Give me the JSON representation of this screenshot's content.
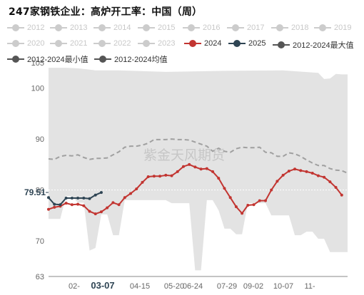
{
  "title": "247家钢铁企业：高炉开工率：中国（周）",
  "watermark": "紫金天风期货",
  "legend": [
    {
      "label": "2012",
      "color": "#cccccc",
      "active": false
    },
    {
      "label": "2013",
      "color": "#cccccc",
      "active": false
    },
    {
      "label": "2014",
      "color": "#cccccc",
      "active": false
    },
    {
      "label": "2015",
      "color": "#cccccc",
      "active": false
    },
    {
      "label": "2016",
      "color": "#cccccc",
      "active": false
    },
    {
      "label": "2017",
      "color": "#cccccc",
      "active": false
    },
    {
      "label": "2018",
      "color": "#cccccc",
      "active": false
    },
    {
      "label": "2019",
      "color": "#cccccc",
      "active": false
    },
    {
      "label": "2020",
      "color": "#cccccc",
      "active": false
    },
    {
      "label": "2021",
      "color": "#cccccc",
      "active": false
    },
    {
      "label": "2022",
      "color": "#cccccc",
      "active": false
    },
    {
      "label": "2023",
      "color": "#cccccc",
      "active": false
    },
    {
      "label": "2024",
      "color": "#c23531",
      "active": true
    },
    {
      "label": "2025",
      "color": "#2f4554",
      "active": true
    },
    {
      "label": "2012-2024最大值",
      "color": "#555555",
      "active": true
    },
    {
      "label": "2012-2024最小值",
      "color": "#555555",
      "active": true
    },
    {
      "label": "2012-2024均值",
      "color": "#555555",
      "active": true
    }
  ],
  "chart_data": {
    "type": "line",
    "ylim": [
      63,
      105
    ],
    "yticks": [
      63,
      70,
      80,
      90,
      100,
      105
    ],
    "x_ticks": [
      "02-",
      "03-07",
      "04-15",
      "05-20",
      "06-24",
      "07-29",
      "09-02",
      "10-07",
      "11-"
    ],
    "highlight_x_tick": "03-07",
    "highlight_y_value": "79.51",
    "series": [
      {
        "name": "2024",
        "color": "#c23531",
        "points": [
          [
            0,
            76.2
          ],
          [
            1,
            76.6
          ],
          [
            2,
            76.8
          ],
          [
            3,
            77.4
          ],
          [
            4,
            77.1
          ],
          [
            5,
            77.2
          ],
          [
            6,
            76.9
          ],
          [
            7,
            75.8
          ],
          [
            8,
            75.3
          ],
          [
            9,
            75.7
          ],
          [
            10,
            76.5
          ],
          [
            11,
            77.5
          ],
          [
            12,
            77.1
          ],
          [
            13,
            78.5
          ],
          [
            14,
            79.3
          ],
          [
            15,
            80.2
          ],
          [
            16,
            81.5
          ],
          [
            17,
            82.6
          ],
          [
            18,
            82.7
          ],
          [
            19,
            82.7
          ],
          [
            20,
            82.9
          ],
          [
            21,
            82.8
          ],
          [
            22,
            83.6
          ],
          [
            23,
            84.6
          ],
          [
            24,
            85.0
          ],
          [
            25,
            84.5
          ],
          [
            26,
            84.1
          ],
          [
            27,
            84.2
          ],
          [
            28,
            83.6
          ],
          [
            29,
            82.3
          ],
          [
            30,
            80.3
          ],
          [
            31,
            78.5
          ],
          [
            32,
            76.7
          ],
          [
            33,
            75.4
          ],
          [
            34,
            77.0
          ],
          [
            35,
            77.1
          ],
          [
            36,
            77.9
          ],
          [
            37,
            77.9
          ],
          [
            38,
            80.0
          ],
          [
            39,
            81.7
          ],
          [
            40,
            82.9
          ],
          [
            41,
            83.7
          ],
          [
            42,
            84.1
          ],
          [
            43,
            83.8
          ],
          [
            44,
            83.6
          ],
          [
            45,
            83.3
          ],
          [
            46,
            82.8
          ],
          [
            47,
            82.5
          ],
          [
            48,
            81.6
          ],
          [
            49,
            80.5
          ],
          [
            50,
            79.0
          ]
        ]
      },
      {
        "name": "2025",
        "color": "#2f4554",
        "points": [
          [
            0,
            78.5
          ],
          [
            1,
            77.2
          ],
          [
            2,
            77.1
          ],
          [
            3,
            78.4
          ],
          [
            4,
            78.4
          ],
          [
            5,
            78.4
          ],
          [
            6,
            78.4
          ],
          [
            7,
            78.3
          ],
          [
            8,
            79.0
          ],
          [
            9,
            79.51
          ]
        ]
      },
      {
        "name": "2012-2024最大值",
        "color": "#e6e6e6",
        "points": [
          [
            0,
            104.0
          ],
          [
            3,
            104.0
          ],
          [
            5,
            103.9
          ],
          [
            8,
            103.5
          ],
          [
            12,
            103.5
          ],
          [
            20,
            103.2
          ],
          [
            30,
            103.4
          ],
          [
            40,
            103.5
          ],
          [
            46,
            103.0
          ],
          [
            47,
            101.8
          ],
          [
            48,
            101.9
          ],
          [
            49,
            102.8
          ],
          [
            50,
            102.7
          ],
          [
            51,
            102.7
          ]
        ]
      },
      {
        "name": "2012-2024最小值",
        "color": "#ffffff",
        "points": [
          [
            0,
            74.3
          ],
          [
            2,
            74.3
          ],
          [
            3,
            78.8
          ],
          [
            4,
            78.8
          ],
          [
            5,
            77.5
          ],
          [
            6,
            77.5
          ],
          [
            7,
            68.1
          ],
          [
            8,
            68.6
          ],
          [
            9,
            75.2
          ],
          [
            10,
            75.2
          ],
          [
            11,
            71.1
          ],
          [
            12,
            71.1
          ],
          [
            13,
            78.0
          ],
          [
            20,
            78.0
          ],
          [
            21,
            77.4
          ],
          [
            24,
            77.4
          ],
          [
            25,
            64.2
          ],
          [
            26,
            64.2
          ],
          [
            27,
            78.0
          ],
          [
            28,
            78.0
          ],
          [
            29,
            76.0
          ],
          [
            30,
            72.4
          ],
          [
            31,
            72.4
          ],
          [
            32,
            71.3
          ],
          [
            33,
            71.3
          ],
          [
            34,
            77.4
          ],
          [
            37,
            77.4
          ],
          [
            38,
            75.0
          ],
          [
            41,
            75.0
          ],
          [
            42,
            71.1
          ],
          [
            43,
            71.1
          ],
          [
            44,
            71.8
          ],
          [
            45,
            71.8
          ],
          [
            46,
            70.4
          ],
          [
            47,
            70.4
          ],
          [
            48,
            67.8
          ],
          [
            50,
            67.8
          ],
          [
            51,
            67.8
          ]
        ]
      },
      {
        "name": "2012-2024均值",
        "color": "#aaaaaa",
        "points": [
          [
            0,
            86.1
          ],
          [
            1,
            86.0
          ],
          [
            2,
            86.6
          ],
          [
            3,
            86.8
          ],
          [
            4,
            86.7
          ],
          [
            5,
            86.9
          ],
          [
            6,
            86.4
          ],
          [
            7,
            86.0
          ],
          [
            8,
            86.2
          ],
          [
            9,
            86.2
          ],
          [
            10,
            86.3
          ],
          [
            11,
            86.9
          ],
          [
            12,
            87.5
          ],
          [
            13,
            88.4
          ],
          [
            14,
            88.6
          ],
          [
            15,
            88.6
          ],
          [
            16,
            88.8
          ],
          [
            17,
            89.2
          ],
          [
            18,
            89.9
          ],
          [
            19,
            89.9
          ],
          [
            20,
            89.9
          ],
          [
            21,
            90.0
          ],
          [
            22,
            89.9
          ],
          [
            23,
            89.9
          ],
          [
            24,
            89.8
          ],
          [
            25,
            89.4
          ],
          [
            26,
            89.0
          ],
          [
            27,
            88.6
          ],
          [
            28,
            87.6
          ],
          [
            29,
            88.2
          ],
          [
            30,
            87.6
          ],
          [
            31,
            87.4
          ],
          [
            32,
            88.1
          ],
          [
            33,
            88.4
          ],
          [
            34,
            88.3
          ],
          [
            35,
            88.3
          ],
          [
            36,
            88.4
          ],
          [
            37,
            87.4
          ],
          [
            38,
            87.3
          ],
          [
            39,
            86.6
          ],
          [
            40,
            86.6
          ],
          [
            41,
            87.3
          ],
          [
            42,
            87.1
          ],
          [
            43,
            86.6
          ],
          [
            44,
            85.9
          ],
          [
            45,
            85.3
          ],
          [
            46,
            84.8
          ],
          [
            47,
            84.8
          ],
          [
            48,
            84.2
          ],
          [
            49,
            83.9
          ],
          [
            50,
            83.8
          ],
          [
            51,
            83.3
          ]
        ]
      }
    ]
  }
}
